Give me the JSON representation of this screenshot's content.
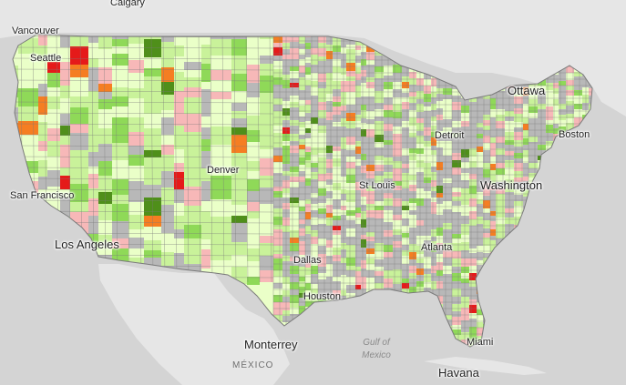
{
  "map": {
    "colors": {
      "water": "#d4d4d4",
      "land": "#e6e6e6",
      "border": "#7a7a7a",
      "no_data": "#b8b8b8",
      "pale_green": "#eaffc8",
      "light_green": "#c9f29a",
      "green": "#8fd958",
      "dark_green": "#4f8f1a",
      "pink": "#f7b8b8",
      "orange": "#f57e22",
      "red": "#e51a1a"
    },
    "labels": {
      "calgary": "Calgary",
      "vancouver": "Vancouver",
      "seattle": "Seattle",
      "ottawa": "Ottawa",
      "boston": "Boston",
      "detroit": "Detroit",
      "denver": "Denver",
      "st_louis": "St Louis",
      "washington": "Washington",
      "san_francisco": "San Francisco",
      "los_angeles": "Los Angeles",
      "atlanta": "Atlanta",
      "dallas": "Dallas",
      "houston": "Houston",
      "miami": "Miami",
      "monterrey": "Monterrey",
      "havana": "Havana",
      "mexico": "MÉXICO",
      "gulf_line1": "Gulf of",
      "gulf_line2": "Mexico"
    }
  }
}
